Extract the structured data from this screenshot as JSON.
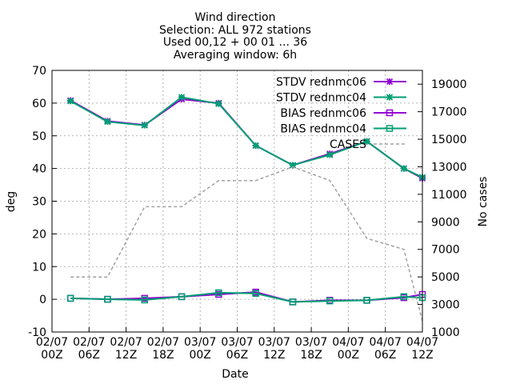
{
  "chart_data": {
    "type": "line",
    "title_lines": [
      "Wind direction",
      "Selection: ALL    972 stations",
      "Used 00,12 + 00 01 ... 36",
      "Averaging window:  6h"
    ],
    "xlabel": "Date",
    "ylabel": "deg",
    "y2label": "No cases",
    "ylim": [
      -10,
      70
    ],
    "y2lim": [
      1000,
      20000
    ],
    "yticks": [
      -10,
      0,
      10,
      20,
      30,
      40,
      50,
      60,
      70
    ],
    "y2ticks": [
      1000,
      3000,
      5000,
      7000,
      9000,
      11000,
      13000,
      15000,
      17000,
      19000
    ],
    "xlim": [
      0,
      60
    ],
    "xticks": [
      {
        "x": 0,
        "l1": "02/07",
        "l2": "00Z"
      },
      {
        "x": 6,
        "l1": "02/07",
        "l2": "06Z"
      },
      {
        "x": 12,
        "l1": "02/07",
        "l2": "12Z"
      },
      {
        "x": 18,
        "l1": "02/07",
        "l2": "18Z"
      },
      {
        "x": 24,
        "l1": "03/07",
        "l2": "00Z"
      },
      {
        "x": 30,
        "l1": "03/07",
        "l2": "06Z"
      },
      {
        "x": 36,
        "l1": "03/07",
        "l2": "12Z"
      },
      {
        "x": 42,
        "l1": "03/07",
        "l2": "18Z"
      },
      {
        "x": 48,
        "l1": "04/07",
        "l2": "00Z"
      },
      {
        "x": 54,
        "l1": "04/07",
        "l2": "06Z"
      },
      {
        "x": 60,
        "l1": "04/07",
        "l2": "12Z"
      }
    ],
    "grid": true,
    "legend_position": "top-right",
    "series": [
      {
        "name": "STDV rednmc06",
        "axis": "y",
        "color": "#9400d3",
        "marker": "asterisk",
        "x": [
          3,
          9,
          15,
          21,
          27,
          33,
          39,
          45,
          51,
          57,
          60
        ],
        "y": [
          60.8,
          54.5,
          53.3,
          61.2,
          60.0,
          47.0,
          41.0,
          44.5,
          48.3,
          40.0,
          37.0
        ]
      },
      {
        "name": "STDV rednmc04",
        "axis": "y",
        "color": "#009e73",
        "marker": "star",
        "x": [
          3,
          9,
          15,
          21,
          27,
          33,
          39,
          45,
          51,
          57,
          60
        ],
        "y": [
          60.6,
          54.3,
          53.2,
          61.8,
          59.8,
          47.0,
          41.0,
          44.2,
          48.3,
          40.0,
          37.3
        ]
      },
      {
        "name": "BIAS rednmc06",
        "axis": "y",
        "color": "#9400d3",
        "marker": "square",
        "x": [
          3,
          9,
          15,
          21,
          27,
          33,
          39,
          45,
          51,
          57,
          60
        ],
        "y": [
          0.3,
          0.0,
          0.3,
          0.8,
          1.5,
          2.2,
          -0.8,
          -0.3,
          -0.3,
          0.5,
          1.5
        ]
      },
      {
        "name": "BIAS rednmc04",
        "axis": "y",
        "color": "#009e73",
        "marker": "square",
        "x": [
          3,
          9,
          15,
          21,
          27,
          33,
          39,
          45,
          51,
          57,
          60
        ],
        "y": [
          0.3,
          0.0,
          -0.2,
          0.8,
          2.0,
          1.8,
          -0.8,
          -0.5,
          -0.3,
          0.8,
          0.5
        ]
      },
      {
        "name": "CASES",
        "axis": "y2",
        "color": "#a0a0a0",
        "dashed": true,
        "x": [
          3,
          9,
          15,
          21,
          27,
          33,
          39,
          45,
          51,
          57,
          60
        ],
        "y": [
          5000,
          5000,
          10100,
          10100,
          12000,
          12000,
          13000,
          12000,
          7800,
          7000,
          1800
        ]
      }
    ]
  }
}
